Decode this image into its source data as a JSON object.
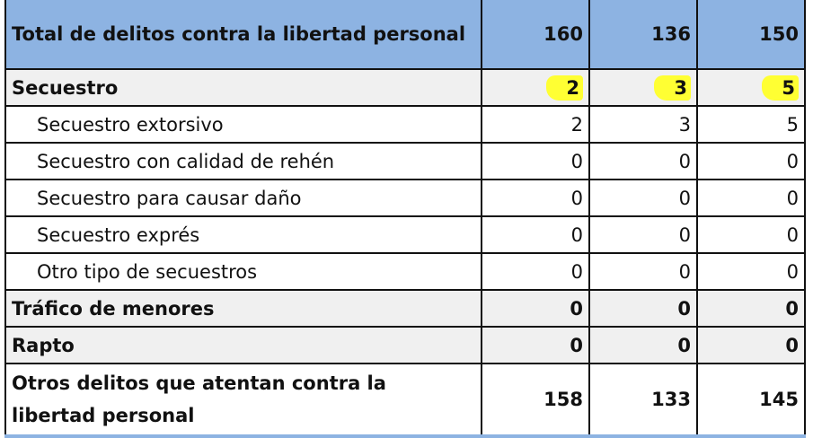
{
  "highlight_color": "#ffff33",
  "header_color": "#8db3e2",
  "rows": [
    {
      "label": "Total de delitos contra la libertad personal",
      "values": [
        "160",
        "136",
        "150"
      ],
      "style": "header"
    },
    {
      "label": "Secuestro",
      "values": [
        "2",
        "3",
        "5"
      ],
      "style": "bold",
      "highlighted": true
    },
    {
      "label": "Secuestro extorsivo",
      "values": [
        "2",
        "3",
        "5"
      ],
      "style": "sub"
    },
    {
      "label": "Secuestro con calidad de rehén",
      "values": [
        "0",
        "0",
        "0"
      ],
      "style": "sub"
    },
    {
      "label": "Secuestro para causar daño",
      "values": [
        "0",
        "0",
        "0"
      ],
      "style": "sub"
    },
    {
      "label": "Secuestro exprés",
      "values": [
        "0",
        "0",
        "0"
      ],
      "style": "sub"
    },
    {
      "label": "Otro tipo de secuestros",
      "values": [
        "0",
        "0",
        "0"
      ],
      "style": "sub"
    },
    {
      "label": "Tráfico de menores",
      "values": [
        "0",
        "0",
        "0"
      ],
      "style": "bold"
    },
    {
      "label": "Rapto",
      "values": [
        "0",
        "0",
        "0"
      ],
      "style": "bold"
    },
    {
      "label": "Otros delitos que atentan contra la libertad personal",
      "values": [
        "158",
        "133",
        "145"
      ],
      "style": "last"
    }
  ]
}
